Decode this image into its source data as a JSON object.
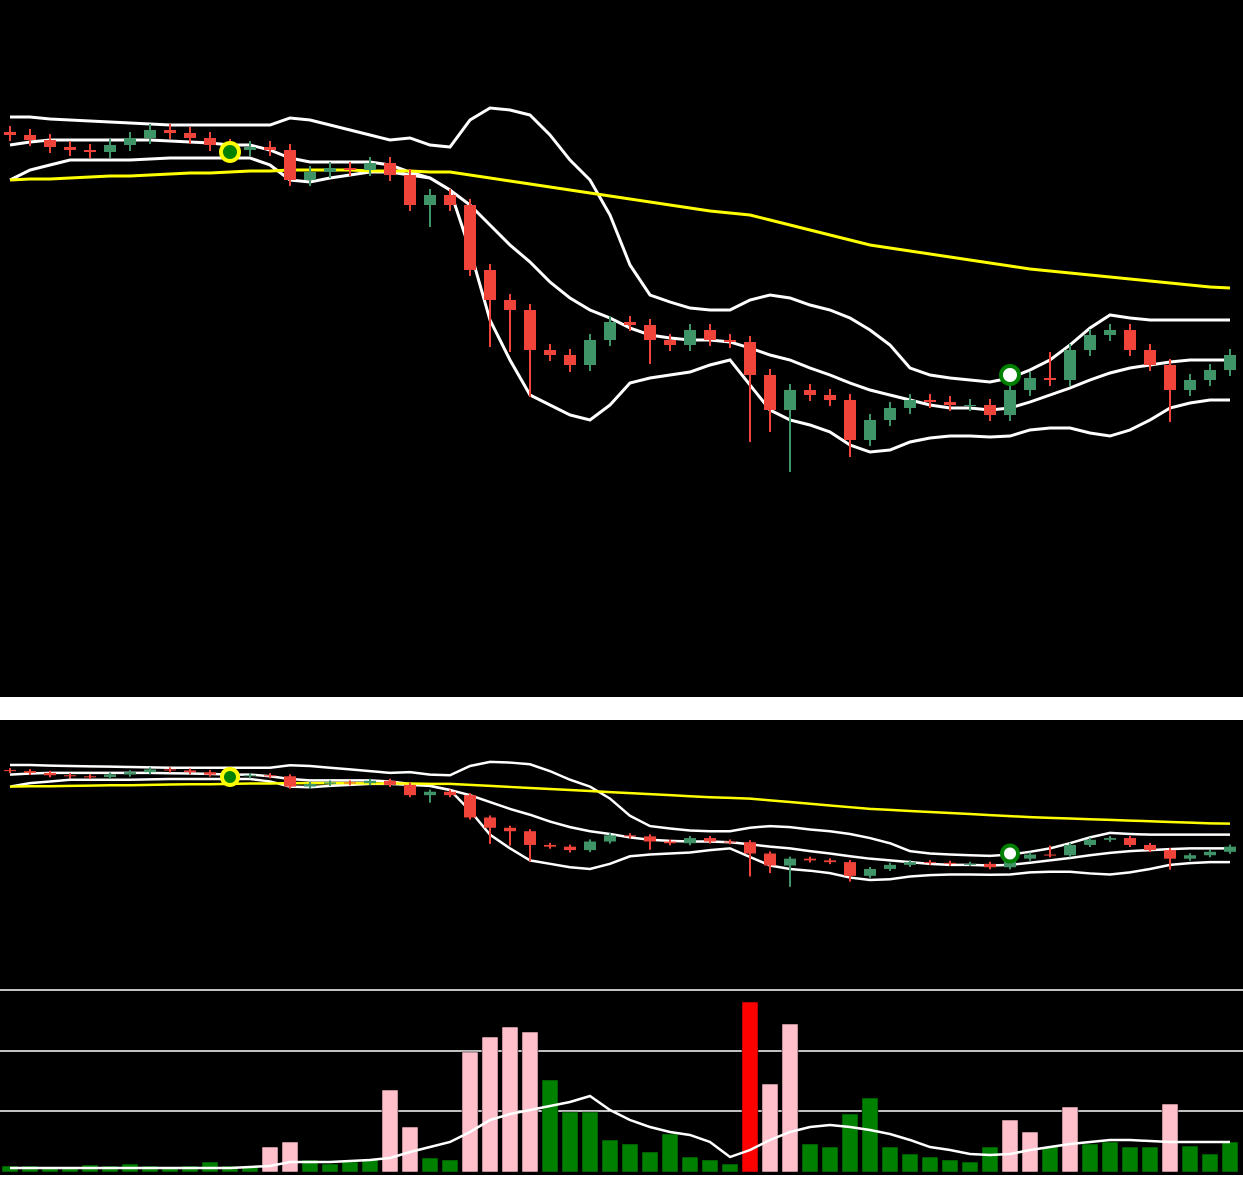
{
  "chart_data": [
    {
      "type": "candlestick",
      "ylim": [
        0,
        697
      ],
      "up_color": "#3f9468",
      "down_color": "#f0443a",
      "open": [
        565,
        562,
        557,
        550,
        547,
        545,
        552,
        559,
        567,
        564,
        559,
        552,
        547,
        550,
        547,
        517,
        525,
        529,
        527,
        534,
        522,
        492,
        502,
        492,
        427,
        397,
        387,
        347,
        342,
        332,
        357,
        375,
        372,
        357,
        352,
        367,
        357,
        355,
        322,
        287,
        307,
        302,
        297,
        257,
        277,
        289,
        297,
        295,
        292,
        292,
        282,
        307,
        319,
        317,
        347,
        362,
        367,
        347,
        332,
        307,
        317,
        327
      ],
      "close": [
        562,
        557,
        550,
        547,
        545,
        552,
        559,
        567,
        564,
        559,
        552,
        547,
        550,
        547,
        517,
        525,
        529,
        527,
        534,
        522,
        492,
        502,
        492,
        427,
        397,
        387,
        347,
        342,
        332,
        357,
        375,
        372,
        357,
        352,
        367,
        357,
        355,
        322,
        287,
        307,
        302,
        297,
        257,
        277,
        289,
        297,
        295,
        292,
        292,
        282,
        307,
        319,
        317,
        347,
        362,
        367,
        347,
        332,
        307,
        317,
        327,
        342
      ],
      "high": [
        571,
        568,
        563,
        556,
        553,
        558,
        565,
        573,
        573,
        570,
        565,
        558,
        556,
        556,
        553,
        531,
        535,
        535,
        540,
        540,
        528,
        508,
        508,
        498,
        433,
        403,
        393,
        353,
        348,
        363,
        381,
        381,
        378,
        363,
        373,
        373,
        363,
        361,
        328,
        313,
        313,
        308,
        303,
        283,
        295,
        303,
        303,
        301,
        298,
        298,
        313,
        325,
        345,
        353,
        368,
        373,
        373,
        353,
        338,
        323,
        333,
        348
      ],
      "low": [
        556,
        551,
        544,
        541,
        539,
        539,
        546,
        553,
        558,
        553,
        546,
        541,
        541,
        541,
        511,
        511,
        519,
        521,
        521,
        516,
        486,
        470,
        486,
        421,
        350,
        345,
        300,
        336,
        325,
        326,
        351,
        366,
        333,
        346,
        346,
        351,
        349,
        255,
        265,
        225,
        296,
        291,
        240,
        251,
        271,
        283,
        289,
        286,
        286,
        276,
        276,
        301,
        311,
        311,
        341,
        356,
        341,
        326,
        275,
        301,
        311,
        321
      ],
      "overlays": [
        {
          "color": "#ffffff",
          "values": [
            580,
            580,
            578,
            577,
            576,
            575,
            574,
            573,
            572,
            572,
            572,
            572,
            572,
            572,
            579,
            577,
            572,
            567,
            562,
            557,
            559,
            552,
            550,
            577,
            589,
            587,
            582,
            562,
            537,
            517,
            482,
            432,
            402,
            395,
            389,
            387,
            387,
            397,
            402,
            399,
            392,
            387,
            379,
            367,
            352,
            329,
            322,
            319,
            317,
            315,
            319,
            327,
            337,
            352,
            369,
            382,
            379,
            377,
            377,
            377,
            377,
            377
          ]
        },
        {
          "color": "#ffffff",
          "values": [
            552,
            555,
            557,
            557,
            557,
            557,
            557,
            557,
            556,
            555,
            554,
            552,
            552,
            547,
            539,
            535,
            535,
            535,
            535,
            532,
            525,
            519,
            507,
            492,
            472,
            452,
            435,
            415,
            399,
            387,
            379,
            369,
            362,
            359,
            357,
            357,
            355,
            349,
            342,
            337,
            329,
            322,
            314,
            307,
            302,
            297,
            292,
            289,
            289,
            287,
            289,
            295,
            302,
            309,
            317,
            324,
            329,
            332,
            335,
            337,
            337,
            337
          ]
        },
        {
          "color": "#ffffff",
          "values": [
            517,
            527,
            532,
            537,
            537,
            537,
            537,
            538,
            539,
            539,
            539,
            539,
            539,
            532,
            517,
            515,
            519,
            522,
            525,
            525,
            522,
            519,
            507,
            447,
            377,
            337,
            302,
            292,
            282,
            277,
            292,
            314,
            319,
            322,
            325,
            332,
            337,
            312,
            287,
            277,
            272,
            265,
            252,
            245,
            247,
            255,
            259,
            261,
            261,
            260,
            261,
            267,
            269,
            269,
            264,
            261,
            267,
            277,
            289,
            294,
            297,
            297
          ]
        },
        {
          "color": "#ffff00",
          "values": [
            517,
            518,
            518,
            519,
            520,
            521,
            521,
            522,
            523,
            524,
            524,
            525,
            526,
            526,
            527,
            527,
            527,
            527,
            526,
            526,
            526,
            525,
            525,
            522,
            519,
            516,
            513,
            510,
            507,
            504,
            501,
            498,
            495,
            492,
            489,
            486,
            484,
            482,
            477,
            472,
            467,
            462,
            457,
            452,
            449,
            446,
            443,
            440,
            437,
            434,
            431,
            428,
            426,
            424,
            422,
            420,
            418,
            416,
            414,
            412,
            410,
            409
          ]
        }
      ],
      "signals": [
        {
          "index": 11,
          "value": 545,
          "color": "#ffff00",
          "fill": "#008000"
        },
        {
          "index": 50,
          "value": 322,
          "color": "#008000",
          "fill": "#ffffff"
        }
      ]
    },
    {
      "type": "candlestick",
      "ylim": [
        -61,
        711
      ]
    },
    {
      "type": "bar",
      "ylim": [
        0,
        182
      ],
      "yticks": [
        61,
        121,
        182
      ],
      "grid": true,
      "values": [
        6,
        6,
        5,
        5,
        7,
        6,
        8,
        6,
        5,
        6,
        10,
        6,
        6,
        25,
        30,
        12,
        8,
        10,
        12,
        82,
        45,
        14,
        12,
        120,
        135,
        145,
        140,
        92,
        60,
        60,
        32,
        28,
        20,
        38,
        15,
        12,
        8,
        170,
        88,
        148,
        28,
        25,
        58,
        74,
        25,
        18,
        15,
        12,
        10,
        25,
        52,
        40,
        25,
        65,
        28,
        30,
        25,
        25,
        68,
        26,
        18,
        30
      ],
      "colors": [
        "#008000",
        "#008000",
        "#008000",
        "#008000",
        "#008000",
        "#008000",
        "#008000",
        "#008000",
        "#008000",
        "#008000",
        "#008000",
        "#008000",
        "#008000",
        "#ffc0cb",
        "#ffc0cb",
        "#008000",
        "#008000",
        "#008000",
        "#008000",
        "#ffc0cb",
        "#ffc0cb",
        "#008000",
        "#008000",
        "#ffc0cb",
        "#ffc0cb",
        "#ffc0cb",
        "#ffc0cb",
        "#008000",
        "#008000",
        "#008000",
        "#008000",
        "#008000",
        "#008000",
        "#008000",
        "#008000",
        "#008000",
        "#008000",
        "#ff0000",
        "#ffc0cb",
        "#ffc0cb",
        "#008000",
        "#008000",
        "#008000",
        "#008000",
        "#008000",
        "#008000",
        "#008000",
        "#008000",
        "#008000",
        "#008000",
        "#ffc0cb",
        "#ffc0cb",
        "#008000",
        "#ffc0cb",
        "#008000",
        "#008000",
        "#008000",
        "#008000",
        "#ffc0cb",
        "#008000",
        "#008000",
        "#008000"
      ],
      "line": {
        "color": "#ffffff",
        "values": [
          4,
          4,
          4,
          4,
          4,
          4,
          4,
          4,
          4,
          4,
          4,
          4,
          5,
          6,
          10,
          10,
          10,
          11,
          12,
          14,
          20,
          25,
          30,
          40,
          52,
          58,
          62,
          66,
          70,
          76,
          62,
          52,
          45,
          40,
          37,
          30,
          15,
          22,
          32,
          40,
          45,
          47,
          45,
          42,
          38,
          32,
          25,
          22,
          18,
          17,
          18,
          22,
          25,
          28,
          30,
          32,
          32,
          31,
          30,
          30,
          30,
          30
        ]
      }
    }
  ]
}
